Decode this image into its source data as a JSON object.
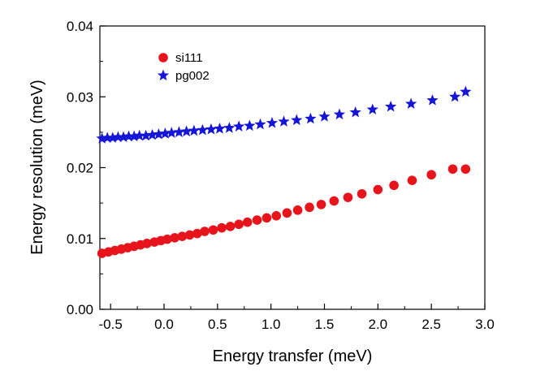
{
  "chart_data": {
    "type": "scatter",
    "xlabel": "Energy transfer (meV)",
    "ylabel": "Energy resolution (meV)",
    "xlim": [
      -0.6,
      3.0
    ],
    "ylim": [
      0.0,
      0.04
    ],
    "xticks": [
      -0.5,
      0.0,
      0.5,
      1.0,
      1.5,
      2.0,
      2.5,
      3.0
    ],
    "xtick_labels": [
      "-0.5",
      "0.0",
      "0.5",
      "1.0",
      "1.5",
      "2.0",
      "2.5",
      "3.0"
    ],
    "yticks": [
      0.0,
      0.01,
      0.02,
      0.03,
      0.04
    ],
    "ytick_labels": [
      "0.00",
      "0.01",
      "0.02",
      "0.03",
      "0.04"
    ],
    "grid": false,
    "legend_position": "top-left",
    "series": [
      {
        "name": "si111",
        "marker": "circle",
        "color": "#e8141c",
        "x": [
          -0.58,
          -0.52,
          -0.46,
          -0.4,
          -0.34,
          -0.28,
          -0.22,
          -0.16,
          -0.09,
          -0.03,
          0.03,
          0.1,
          0.17,
          0.24,
          0.31,
          0.38,
          0.46,
          0.54,
          0.62,
          0.7,
          0.78,
          0.87,
          0.96,
          1.05,
          1.15,
          1.25,
          1.36,
          1.47,
          1.59,
          1.72,
          1.85,
          2.0,
          2.15,
          2.32,
          2.5,
          2.7,
          2.82
        ],
        "y": [
          0.0079,
          0.0081,
          0.0083,
          0.0085,
          0.0087,
          0.0089,
          0.0091,
          0.0093,
          0.0095,
          0.0097,
          0.0099,
          0.0101,
          0.0103,
          0.0105,
          0.0107,
          0.011,
          0.0112,
          0.0115,
          0.0117,
          0.012,
          0.0123,
          0.0126,
          0.0129,
          0.0132,
          0.0136,
          0.014,
          0.0144,
          0.0148,
          0.0153,
          0.0158,
          0.0163,
          0.0169,
          0.0175,
          0.0182,
          0.019,
          0.0198,
          0.0198
        ]
      },
      {
        "name": "pg002",
        "marker": "star",
        "color": "#1515d8",
        "x": [
          -0.58,
          -0.53,
          -0.48,
          -0.43,
          -0.38,
          -0.33,
          -0.28,
          -0.23,
          -0.17,
          -0.11,
          -0.05,
          0.01,
          0.07,
          0.14,
          0.21,
          0.28,
          0.36,
          0.44,
          0.52,
          0.61,
          0.7,
          0.8,
          0.9,
          1.01,
          1.12,
          1.24,
          1.37,
          1.5,
          1.64,
          1.79,
          1.95,
          2.12,
          2.31,
          2.51,
          2.72,
          2.82
        ],
        "y": [
          0.0241,
          0.0242,
          0.0242,
          0.0243,
          0.0243,
          0.0244,
          0.0244,
          0.0245,
          0.0245,
          0.0246,
          0.0247,
          0.0248,
          0.0249,
          0.025,
          0.0251,
          0.0252,
          0.0253,
          0.0254,
          0.0255,
          0.0256,
          0.0258,
          0.0259,
          0.0261,
          0.0263,
          0.0265,
          0.0267,
          0.0269,
          0.0272,
          0.0275,
          0.0278,
          0.0282,
          0.0286,
          0.029,
          0.0295,
          0.03,
          0.0307
        ]
      }
    ]
  }
}
